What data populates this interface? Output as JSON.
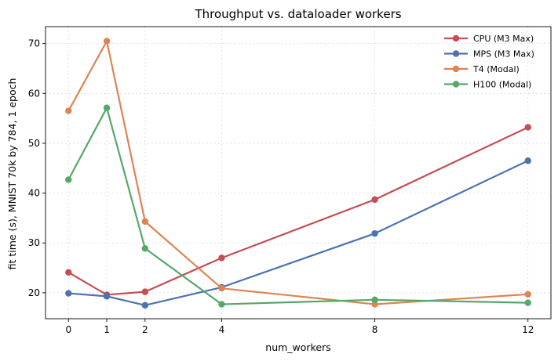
{
  "chart_data": {
    "type": "line",
    "title": "Throughput vs. dataloader workers",
    "xlabel": "num_workers",
    "ylabel": "fit time (s), MNIST 70k by 784, 1 epoch",
    "x": [
      0,
      1,
      2,
      4,
      8,
      12
    ],
    "xticks": [
      0,
      1,
      2,
      4,
      8,
      12
    ],
    "yticks": [
      20,
      30,
      40,
      50,
      60,
      70
    ],
    "xlim": [
      -0.6,
      12.6
    ],
    "ylim": [
      14.8,
      73.4
    ],
    "grid": true,
    "legend_position": "top-right",
    "series": [
      {
        "name": "CPU (M3 Max)",
        "color": "#c44e52",
        "values": [
          24.1,
          19.6,
          20.2,
          27.0,
          38.7,
          53.2
        ]
      },
      {
        "name": "MPS (M3 Max)",
        "color": "#4c72b0",
        "values": [
          19.9,
          19.3,
          17.5,
          21.1,
          31.9,
          46.5
        ]
      },
      {
        "name": "T4 (Modal)",
        "color": "#dd8452",
        "values": [
          56.5,
          70.5,
          34.3,
          20.9,
          17.7,
          19.7
        ]
      },
      {
        "name": "H100 (Modal)",
        "color": "#55a868",
        "values": [
          42.7,
          57.1,
          28.9,
          17.7,
          18.6,
          18.0
        ]
      }
    ]
  }
}
